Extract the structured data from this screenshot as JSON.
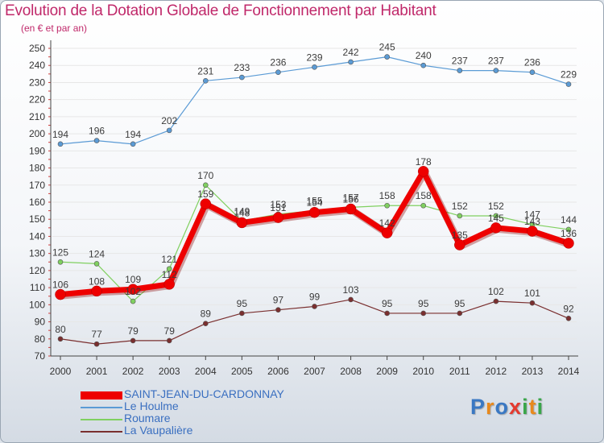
{
  "title": "Evolution de la Dotation Globale de Fonctionnement par Habitant",
  "subtitle": "(en € et par an)",
  "logo": [
    "P",
    "r",
    "o",
    "x",
    "i",
    "t",
    "i"
  ],
  "logo_colors": [
    "#3a78c3",
    "#e8891d",
    "#3a78c3",
    "#e43a2f",
    "#3aa64a",
    "#e8891d",
    "#3aa64a"
  ],
  "chart_data": {
    "type": "line",
    "categories": [
      "2000",
      "2001",
      "2002",
      "2003",
      "2004",
      "2005",
      "2006",
      "2007",
      "2008",
      "2009",
      "2010",
      "2011",
      "2012",
      "2013",
      "2014"
    ],
    "ylim": [
      70,
      250
    ],
    "yticks": [
      70,
      80,
      90,
      100,
      110,
      120,
      130,
      140,
      150,
      160,
      170,
      180,
      190,
      200,
      210,
      220,
      230,
      240,
      250
    ],
    "grid": true,
    "series": [
      {
        "name": "SAINT-JEAN-DU-CARDONNAY",
        "color": "#ee0000",
        "values": [
          106,
          108,
          109,
          112,
          159,
          148,
          151,
          154,
          156,
          142,
          178,
          135,
          145,
          143,
          136
        ]
      },
      {
        "name": "Le Houlme",
        "color": "#5b9bd5",
        "values": [
          194,
          196,
          194,
          202,
          231,
          233,
          236,
          239,
          242,
          245,
          240,
          237,
          237,
          236,
          229
        ]
      },
      {
        "name": "Roumare",
        "color": "#80d060",
        "values": [
          125,
          124,
          102,
          121,
          170,
          149,
          153,
          155,
          157,
          158,
          158,
          152,
          152,
          147,
          144
        ]
      },
      {
        "name": "La Vaupalière",
        "color": "#7a2f2f",
        "values": [
          80,
          77,
          79,
          79,
          89,
          95,
          97,
          99,
          103,
          95,
          95,
          95,
          102,
          101,
          92
        ]
      }
    ]
  }
}
